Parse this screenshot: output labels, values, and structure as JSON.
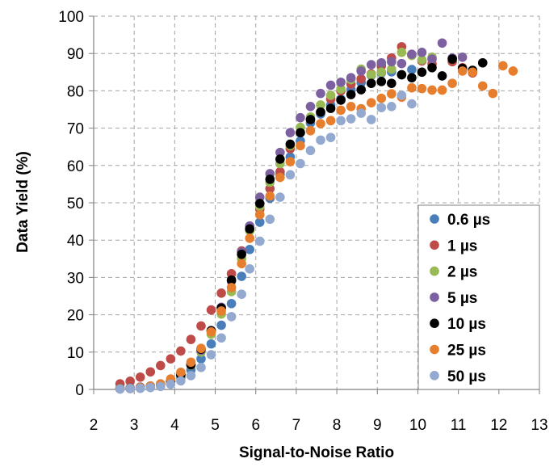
{
  "chart_data": {
    "type": "scatter",
    "title": "",
    "xlabel": "Signal-to-Noise Ratio",
    "ylabel": "Data Yield (%)",
    "xlim": [
      2,
      13
    ],
    "ylim": [
      0,
      100
    ],
    "xticks": [
      "2",
      "3",
      "4",
      "5",
      "6",
      "7",
      "8",
      "9",
      "10",
      "11",
      "12",
      "13"
    ],
    "yticks": [
      "0",
      "10",
      "20",
      "30",
      "40",
      "50",
      "60",
      "70",
      "80",
      "90",
      "100"
    ],
    "grid": true,
    "legend_position": "bottom-right",
    "series": [
      {
        "name": "0.6 µs",
        "color": "#4a7ebb",
        "points": [
          [
            2.65,
            0.3
          ],
          [
            2.9,
            0.4
          ],
          [
            3.15,
            0.6
          ],
          [
            3.4,
            0.9
          ],
          [
            3.65,
            1.3
          ],
          [
            3.9,
            2.0
          ],
          [
            4.15,
            3.2
          ],
          [
            4.4,
            5.2
          ],
          [
            4.65,
            8.2
          ],
          [
            4.9,
            12.2
          ],
          [
            5.15,
            17.2
          ],
          [
            5.4,
            23.0
          ],
          [
            5.65,
            30.3
          ],
          [
            5.85,
            37.5
          ],
          [
            6.1,
            44.8
          ],
          [
            6.35,
            51.2
          ],
          [
            6.6,
            57.6
          ],
          [
            6.85,
            62.3
          ],
          [
            7.1,
            66.6
          ],
          [
            7.35,
            71.4
          ],
          [
            7.6,
            73.8
          ],
          [
            7.85,
            76.2
          ],
          [
            8.1,
            77.8
          ],
          [
            8.35,
            80.3
          ],
          [
            8.6,
            82.2
          ],
          [
            8.85,
            84.1
          ],
          [
            9.1,
            84.8
          ],
          [
            9.35,
            85.1
          ],
          [
            9.6,
            84.3
          ],
          [
            9.85,
            85.7
          ]
        ]
      },
      {
        "name": "1 µs",
        "color": "#be4b48",
        "points": [
          [
            2.65,
            1.5
          ],
          [
            2.9,
            2.2
          ],
          [
            3.15,
            3.3
          ],
          [
            3.4,
            4.7
          ],
          [
            3.65,
            6.4
          ],
          [
            3.9,
            8.2
          ],
          [
            4.15,
            10.3
          ],
          [
            4.4,
            13.4
          ],
          [
            4.65,
            17.0
          ],
          [
            4.9,
            21.3
          ],
          [
            5.15,
            25.8
          ],
          [
            5.4,
            31.0
          ],
          [
            5.65,
            37.1
          ],
          [
            5.85,
            43.0
          ],
          [
            6.1,
            48.3
          ],
          [
            6.35,
            53.8
          ],
          [
            6.6,
            58.3
          ],
          [
            6.85,
            64.5
          ],
          [
            7.1,
            68.8
          ],
          [
            7.35,
            72.3
          ],
          [
            7.6,
            74.3
          ],
          [
            7.85,
            77.8
          ],
          [
            8.1,
            80.0
          ],
          [
            8.35,
            81.8
          ],
          [
            8.6,
            83.2
          ],
          [
            8.85,
            84.5
          ],
          [
            9.1,
            86.7
          ],
          [
            9.35,
            88.8
          ],
          [
            9.6,
            91.8
          ],
          [
            9.85,
            89.5
          ],
          [
            10.1,
            88.0
          ],
          [
            10.35,
            87.2
          ],
          [
            10.85,
            87.8
          ],
          [
            11.1,
            86.2
          ],
          [
            11.35,
            84.8
          ]
        ]
      },
      {
        "name": "2 µs",
        "color": "#98b954",
        "points": [
          [
            2.65,
            0.2
          ],
          [
            2.9,
            0.3
          ],
          [
            3.15,
            0.5
          ],
          [
            3.4,
            0.8
          ],
          [
            3.65,
            1.3
          ],
          [
            3.9,
            2.2
          ],
          [
            4.15,
            3.8
          ],
          [
            4.4,
            6.5
          ],
          [
            4.65,
            10.0
          ],
          [
            4.9,
            14.8
          ],
          [
            5.15,
            20.2
          ],
          [
            5.4,
            26.2
          ],
          [
            5.65,
            35.0
          ],
          [
            5.85,
            42.5
          ],
          [
            6.1,
            49.0
          ],
          [
            6.35,
            55.5
          ],
          [
            6.6,
            60.5
          ],
          [
            6.85,
            65.3
          ],
          [
            7.1,
            70.2
          ],
          [
            7.35,
            73.0
          ],
          [
            7.6,
            76.2
          ],
          [
            7.85,
            78.8
          ],
          [
            8.1,
            80.5
          ],
          [
            8.35,
            83.0
          ],
          [
            8.6,
            85.8
          ],
          [
            8.85,
            84.3
          ],
          [
            9.1,
            85.0
          ],
          [
            9.35,
            85.8
          ],
          [
            9.6,
            90.3
          ],
          [
            9.85,
            89.5
          ],
          [
            10.1,
            88.3
          ],
          [
            10.35,
            89.0
          ]
        ]
      },
      {
        "name": "5 µs",
        "color": "#7d60a0",
        "points": [
          [
            2.65,
            0.3
          ],
          [
            2.9,
            0.4
          ],
          [
            3.15,
            0.6
          ],
          [
            3.4,
            0.9
          ],
          [
            3.65,
            1.4
          ],
          [
            3.9,
            2.3
          ],
          [
            4.15,
            4.0
          ],
          [
            4.4,
            6.7
          ],
          [
            4.65,
            10.5
          ],
          [
            4.9,
            15.8
          ],
          [
            5.15,
            22.0
          ],
          [
            5.4,
            29.0
          ],
          [
            5.65,
            36.8
          ],
          [
            5.85,
            43.8
          ],
          [
            6.1,
            51.5
          ],
          [
            6.35,
            57.8
          ],
          [
            6.6,
            63.5
          ],
          [
            6.85,
            68.8
          ],
          [
            7.1,
            72.8
          ],
          [
            7.35,
            75.8
          ],
          [
            7.6,
            79.3
          ],
          [
            7.85,
            81.5
          ],
          [
            8.1,
            82.3
          ],
          [
            8.35,
            83.5
          ],
          [
            8.6,
            85.3
          ],
          [
            8.85,
            87.0
          ],
          [
            9.1,
            87.5
          ],
          [
            9.35,
            87.8
          ],
          [
            9.6,
            87.3
          ],
          [
            9.85,
            89.8
          ],
          [
            10.1,
            90.3
          ],
          [
            10.35,
            88.5
          ],
          [
            10.6,
            92.8
          ],
          [
            10.85,
            88.8
          ],
          [
            11.1,
            89.0
          ]
        ]
      },
      {
        "name": "10 µs",
        "color": "#000000",
        "points": [
          [
            2.65,
            0.2
          ],
          [
            2.9,
            0.3
          ],
          [
            3.15,
            0.5
          ],
          [
            3.4,
            0.8
          ],
          [
            3.65,
            1.3
          ],
          [
            3.9,
            2.2
          ],
          [
            4.15,
            3.9
          ],
          [
            4.4,
            6.6
          ],
          [
            4.65,
            10.8
          ],
          [
            4.9,
            15.7
          ],
          [
            5.15,
            21.8
          ],
          [
            5.4,
            29.3
          ],
          [
            5.65,
            36.2
          ],
          [
            5.85,
            43.0
          ],
          [
            6.1,
            49.8
          ],
          [
            6.35,
            56.3
          ],
          [
            6.6,
            61.7
          ],
          [
            6.85,
            65.7
          ],
          [
            7.1,
            68.8
          ],
          [
            7.35,
            72.3
          ],
          [
            7.6,
            74.3
          ],
          [
            7.85,
            75.3
          ],
          [
            8.1,
            77.5
          ],
          [
            8.35,
            79.0
          ],
          [
            8.6,
            80.3
          ],
          [
            8.85,
            82.0
          ],
          [
            9.1,
            82.5
          ],
          [
            9.35,
            82.0
          ],
          [
            9.6,
            84.3
          ],
          [
            9.85,
            83.5
          ],
          [
            10.1,
            85.0
          ],
          [
            10.35,
            86.2
          ],
          [
            10.6,
            84.0
          ],
          [
            10.85,
            88.5
          ],
          [
            11.1,
            86.0
          ],
          [
            11.35,
            85.5
          ],
          [
            11.6,
            87.5
          ]
        ]
      },
      {
        "name": "25 µs",
        "color": "#e67e2e",
        "points": [
          [
            2.65,
            0.2
          ],
          [
            2.9,
            0.3
          ],
          [
            3.15,
            0.5
          ],
          [
            3.4,
            0.9
          ],
          [
            3.65,
            1.5
          ],
          [
            3.9,
            2.8
          ],
          [
            4.15,
            4.6
          ],
          [
            4.4,
            7.3
          ],
          [
            4.65,
            11.0
          ],
          [
            4.9,
            15.4
          ],
          [
            5.15,
            21.0
          ],
          [
            5.4,
            27.3
          ],
          [
            5.65,
            33.7
          ],
          [
            5.85,
            40.5
          ],
          [
            6.1,
            46.8
          ],
          [
            6.35,
            51.8
          ],
          [
            6.6,
            56.8
          ],
          [
            6.85,
            61.0
          ],
          [
            7.1,
            65.3
          ],
          [
            7.35,
            69.3
          ],
          [
            7.6,
            71.2
          ],
          [
            7.85,
            72.0
          ],
          [
            8.1,
            74.8
          ],
          [
            8.35,
            75.8
          ],
          [
            8.6,
            75.2
          ],
          [
            8.85,
            76.8
          ],
          [
            9.1,
            78.0
          ],
          [
            9.35,
            79.2
          ],
          [
            9.6,
            78.3
          ],
          [
            9.85,
            80.8
          ],
          [
            10.1,
            80.6
          ],
          [
            10.35,
            80.2
          ],
          [
            10.6,
            80.2
          ],
          [
            10.85,
            82.0
          ],
          [
            11.1,
            85.3
          ],
          [
            11.35,
            85.0
          ],
          [
            11.6,
            81.3
          ],
          [
            11.85,
            79.3
          ],
          [
            12.1,
            86.7
          ],
          [
            12.35,
            85.3
          ]
        ]
      },
      {
        "name": "50 µs",
        "color": "#93a9cf",
        "points": [
          [
            2.65,
            0.1
          ],
          [
            2.9,
            0.2
          ],
          [
            3.15,
            0.3
          ],
          [
            3.4,
            0.5
          ],
          [
            3.65,
            0.8
          ],
          [
            3.9,
            1.4
          ],
          [
            4.15,
            2.3
          ],
          [
            4.4,
            3.7
          ],
          [
            4.65,
            5.9
          ],
          [
            4.9,
            9.3
          ],
          [
            5.15,
            13.8
          ],
          [
            5.4,
            19.5
          ],
          [
            5.65,
            25.5
          ],
          [
            5.85,
            32.3
          ],
          [
            6.1,
            39.7
          ],
          [
            6.35,
            45.6
          ],
          [
            6.6,
            51.5
          ],
          [
            6.85,
            57.5
          ],
          [
            7.1,
            60.5
          ],
          [
            7.35,
            64.0
          ],
          [
            7.6,
            66.8
          ],
          [
            7.85,
            67.5
          ],
          [
            8.1,
            72.0
          ],
          [
            8.35,
            72.5
          ],
          [
            8.6,
            74.0
          ],
          [
            8.85,
            72.3
          ],
          [
            9.1,
            75.5
          ],
          [
            9.35,
            75.8
          ],
          [
            9.6,
            78.8
          ],
          [
            9.85,
            76.5
          ]
        ]
      }
    ]
  }
}
